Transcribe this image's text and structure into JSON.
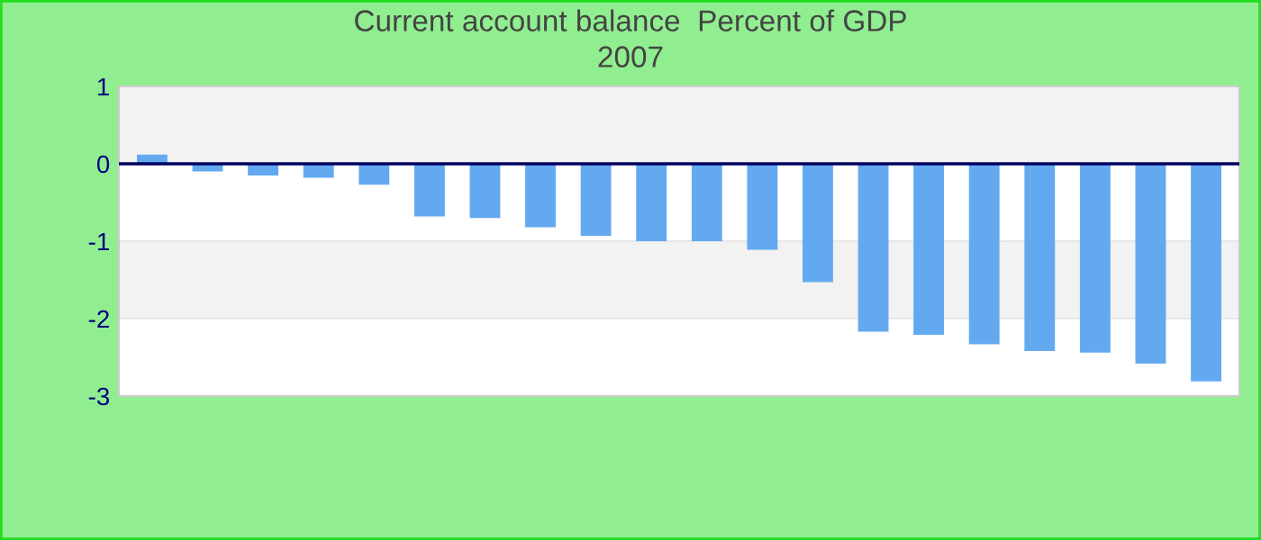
{
  "chart_data": {
    "type": "bar",
    "title": "Current account balance  Percent of GDP",
    "subtitle": "2007",
    "categories": [
      null,
      null,
      null,
      null,
      null,
      null,
      null,
      null,
      null,
      null,
      null,
      null,
      null,
      null,
      null,
      null,
      null,
      null,
      null,
      null
    ],
    "values": [
      0.12,
      -0.1,
      -0.15,
      -0.18,
      -0.27,
      -0.68,
      -0.7,
      -0.82,
      -0.93,
      -1.0,
      -1.0,
      -1.11,
      -1.53,
      -2.17,
      -2.21,
      -2.33,
      -2.42,
      -2.44,
      -2.58,
      -2.81
    ],
    "color": "#63a9f0",
    "ylim": [
      -3,
      1
    ],
    "yticks": [
      -3,
      -2,
      -1,
      0,
      1
    ],
    "grid": "y"
  }
}
